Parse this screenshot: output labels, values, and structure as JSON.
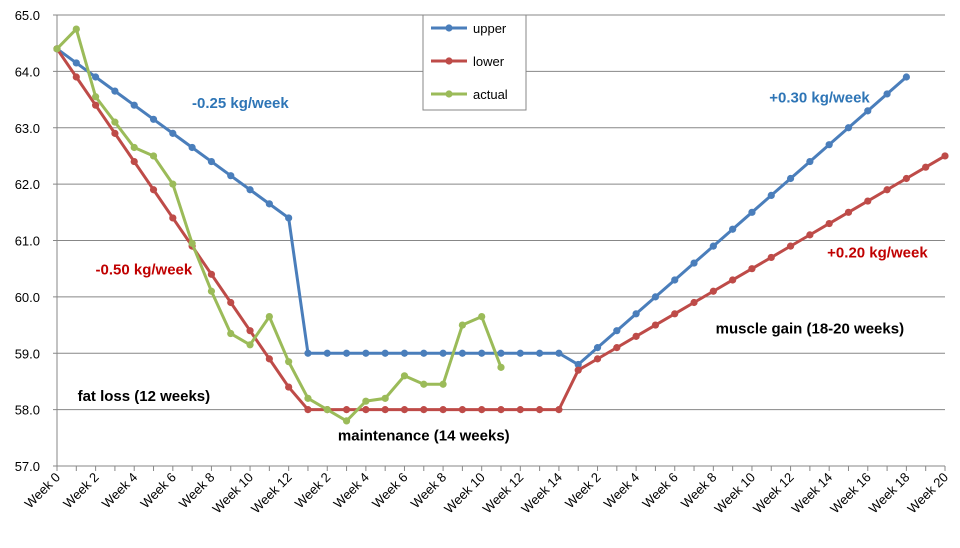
{
  "chart_data": {
    "type": "line",
    "title": "",
    "xlabel": "",
    "ylabel": "",
    "ylim": [
      57.0,
      65.0
    ],
    "ytick_step": 1.0,
    "yticks": [
      "57.0",
      "58.0",
      "59.0",
      "60.0",
      "61.0",
      "62.0",
      "63.0",
      "64.0",
      "65.0"
    ],
    "grid": true,
    "legend_position": "top-center",
    "categories": [
      "Week 0",
      "Week 1",
      "Week 2",
      "Week 3",
      "Week 4",
      "Week 5",
      "Week 6",
      "Week 7",
      "Week 8",
      "Week 9",
      "Week 10",
      "Week 11",
      "Week 12",
      "Week 1",
      "Week 2",
      "Week 3",
      "Week 4",
      "Week 5",
      "Week 6",
      "Week 7",
      "Week 8",
      "Week 9",
      "Week 10",
      "Week 11",
      "Week 12",
      "Week 13",
      "Week 14",
      "Week 1",
      "Week 2",
      "Week 3",
      "Week 4",
      "Week 5",
      "Week 6",
      "Week 7",
      "Week 8",
      "Week 9",
      "Week 10",
      "Week 11",
      "Week 12",
      "Week 13",
      "Week 14",
      "Week 15",
      "Week 16",
      "Week 17",
      "Week 18",
      "Week 19",
      "Week 20"
    ],
    "tick_labels": [
      "Week 0",
      "Week 2",
      "Week 4",
      "Week 6",
      "Week 8",
      "Week 10",
      "Week 12",
      "Week 2",
      "Week 4",
      "Week 6",
      "Week 8",
      "Week 10",
      "Week 12",
      "Week 14",
      "Week 2",
      "Week 4",
      "Week 6",
      "Week 8",
      "Week 10",
      "Week 12",
      "Week 14",
      "Week 16",
      "Week 18",
      "Week 20"
    ],
    "series": [
      {
        "name": "upper",
        "color": "#4a7ebb",
        "values": [
          64.4,
          64.15,
          63.9,
          63.65,
          63.4,
          63.15,
          62.9,
          62.65,
          62.4,
          62.15,
          61.9,
          61.65,
          61.4,
          59.0,
          59.0,
          59.0,
          59.0,
          59.0,
          59.0,
          59.0,
          59.0,
          59.0,
          59.0,
          59.0,
          59.0,
          59.0,
          59.0,
          58.8,
          59.1,
          59.4,
          59.7,
          60.0,
          60.3,
          60.6,
          60.9,
          61.2,
          61.5,
          61.8,
          62.1,
          62.4,
          62.7,
          63.0,
          63.3,
          63.6,
          63.9,
          null,
          null
        ]
      },
      {
        "name": "lower",
        "color": "#be4b48",
        "values": [
          64.4,
          63.9,
          63.4,
          62.9,
          62.4,
          61.9,
          61.4,
          60.9,
          60.4,
          59.9,
          59.4,
          58.9,
          58.4,
          58.0,
          58.0,
          58.0,
          58.0,
          58.0,
          58.0,
          58.0,
          58.0,
          58.0,
          58.0,
          58.0,
          58.0,
          58.0,
          58.0,
          58.7,
          58.9,
          59.1,
          59.3,
          59.5,
          59.7,
          59.9,
          60.1,
          60.3,
          60.5,
          60.7,
          60.9,
          61.1,
          61.3,
          61.5,
          61.7,
          61.9,
          62.1,
          62.3,
          62.5
        ]
      },
      {
        "name": "actual",
        "color": "#9bbb59",
        "values": [
          64.4,
          64.75,
          63.55,
          63.1,
          62.65,
          62.5,
          62.0,
          60.95,
          60.1,
          59.35,
          59.15,
          59.65,
          58.85,
          58.2,
          58.0,
          57.8,
          58.15,
          58.2,
          58.6,
          58.45,
          58.45,
          59.5,
          59.65,
          58.75,
          null,
          null,
          null,
          null,
          null,
          null,
          null,
          null,
          null,
          null,
          null,
          null,
          null,
          null,
          null,
          null,
          null,
          null,
          null,
          null,
          null,
          null,
          null
        ]
      }
    ],
    "annotations": [
      {
        "text": "-0.25 kg/week",
        "color": "#2e75b6",
        "x": 9.5,
        "y": 63.35
      },
      {
        "text": "-0.50 kg/week",
        "color": "#c00000",
        "x": 4.5,
        "y": 60.4
      },
      {
        "text": "fat loss (12 weeks)",
        "color": "#000000",
        "x": 4.5,
        "y": 58.15
      },
      {
        "text": "maintenance (14 weeks)",
        "color": "#000000",
        "x": 19.0,
        "y": 57.45
      },
      {
        "text": "+0.30 kg/week",
        "color": "#2e75b6",
        "x": 39.5,
        "y": 63.45
      },
      {
        "text": "+0.20 kg/week",
        "color": "#c00000",
        "x": 42.5,
        "y": 60.7
      },
      {
        "text": "muscle gain (18-20 weeks)",
        "color": "#000000",
        "x": 39.0,
        "y": 59.35
      }
    ]
  }
}
